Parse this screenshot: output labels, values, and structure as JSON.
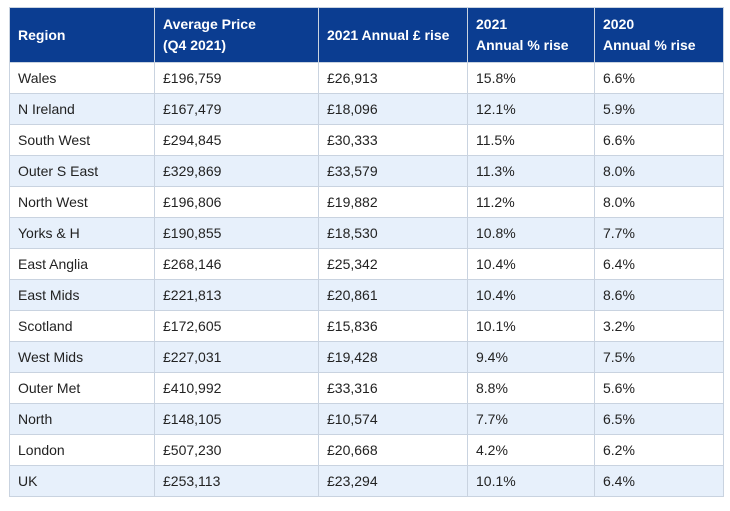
{
  "table": {
    "headers": [
      {
        "lines": [
          "Region"
        ]
      },
      {
        "lines": [
          "Average Price",
          "(Q4 2021)"
        ]
      },
      {
        "lines": [
          "2021 Annual £ rise"
        ]
      },
      {
        "lines": [
          "2021",
          "Annual % rise"
        ]
      },
      {
        "lines": [
          "2020",
          "Annual % rise"
        ]
      }
    ],
    "rows": [
      [
        "Wales",
        "£196,759",
        "£26,913",
        "15.8%",
        "6.6%"
      ],
      [
        "N Ireland",
        "£167,479",
        "£18,096",
        "12.1%",
        "5.9%"
      ],
      [
        "South West",
        "£294,845",
        "£30,333",
        "11.5%",
        "6.6%"
      ],
      [
        "Outer S East",
        "£329,869",
        "£33,579",
        "11.3%",
        "8.0%"
      ],
      [
        "North West",
        "£196,806",
        "£19,882",
        "11.2%",
        "8.0%"
      ],
      [
        "Yorks & H",
        "£190,855",
        "£18,530",
        "10.8%",
        "7.7%"
      ],
      [
        "East Anglia",
        "£268,146",
        "£25,342",
        "10.4%",
        "6.4%"
      ],
      [
        "East Mids",
        "£221,813",
        "£20,861",
        "10.4%",
        "8.6%"
      ],
      [
        "Scotland",
        "£172,605",
        "£15,836",
        "10.1%",
        "3.2%"
      ],
      [
        "West Mids",
        "£227,031",
        "£19,428",
        "9.4%",
        "7.5%"
      ],
      [
        "Outer Met",
        "£410,992",
        "£33,316",
        "8.8%",
        "5.6%"
      ],
      [
        "North",
        "£148,105",
        "£10,574",
        "7.7%",
        "6.5%"
      ],
      [
        "London",
        "£507,230",
        "£20,668",
        "4.2%",
        "6.2%"
      ],
      [
        "UK",
        "£253,113",
        "£23,294",
        "10.1%",
        "6.4%"
      ]
    ]
  },
  "colors": {
    "header_bg": "#0b3d91",
    "header_text": "#ffffff",
    "row_alt_bg": "#e7f0fb",
    "border": "#c9d3e0"
  }
}
